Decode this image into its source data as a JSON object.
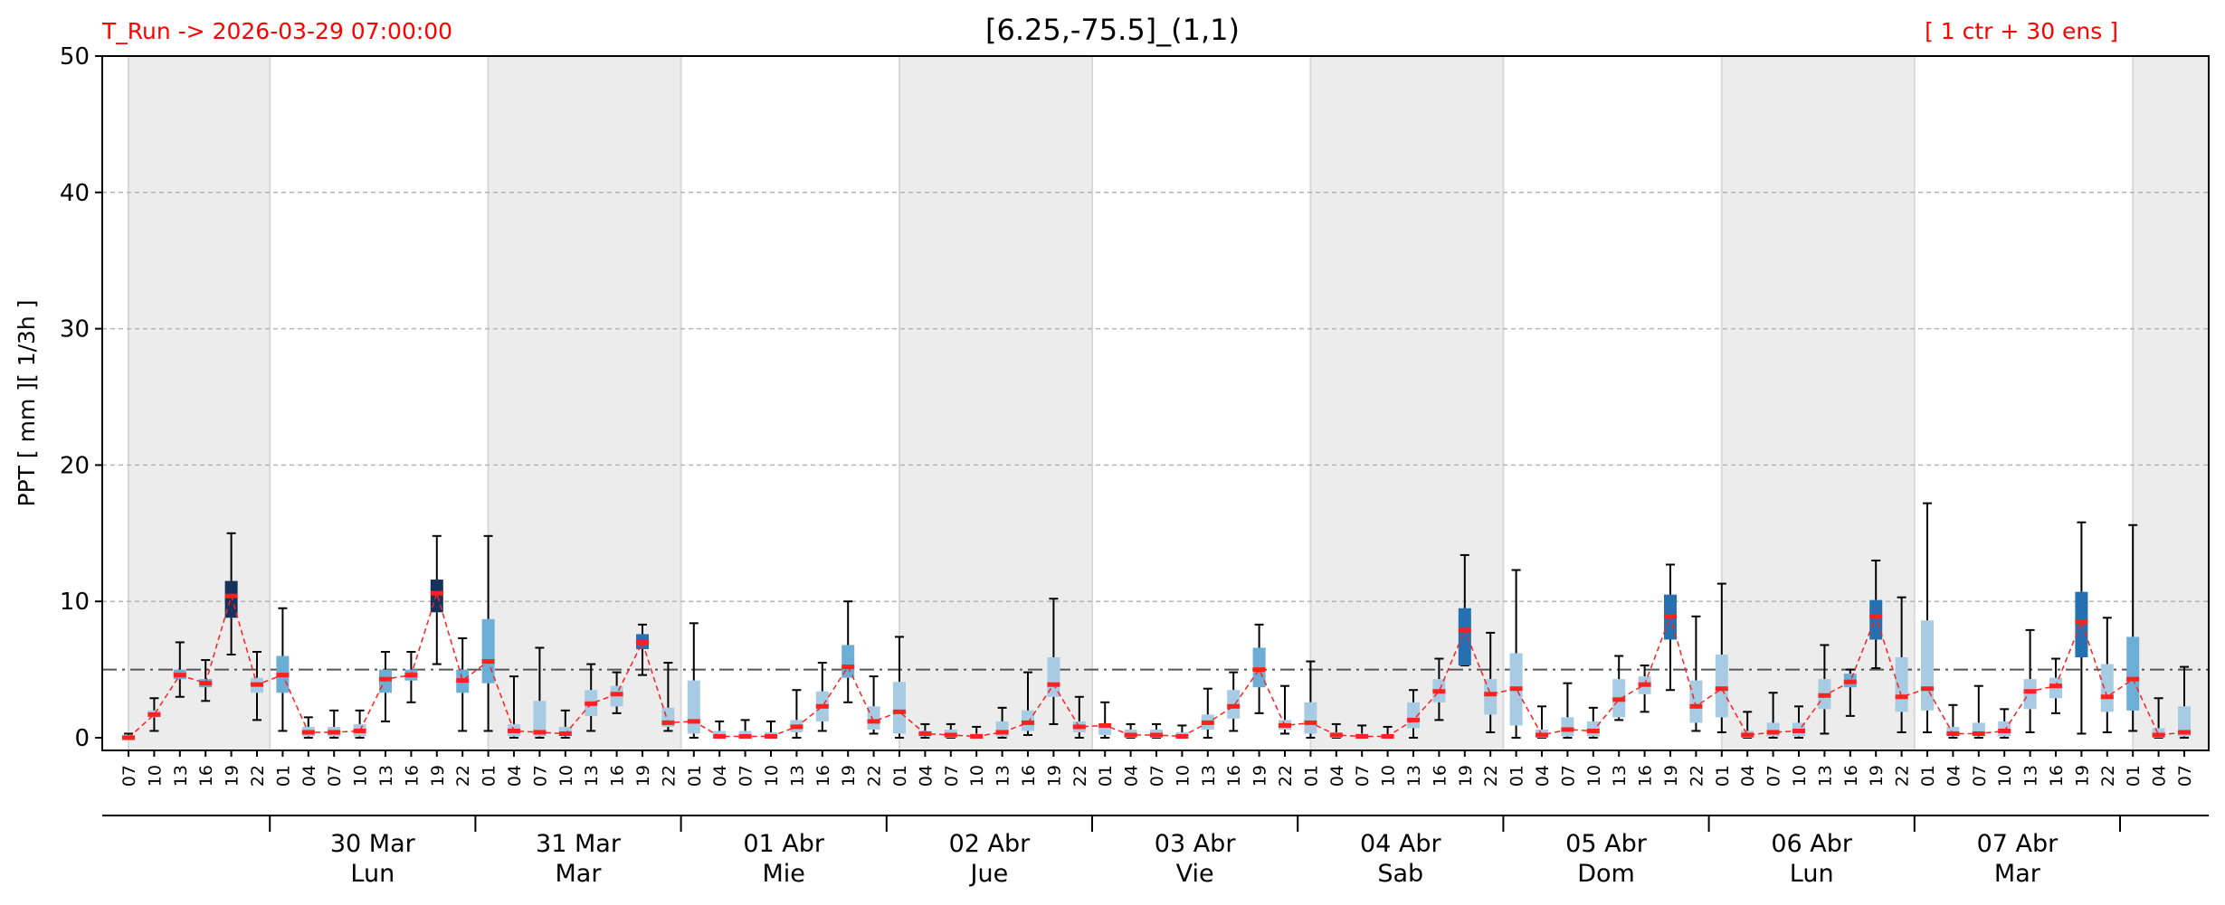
{
  "header": {
    "run_label": "T_Run -> 2026-03-29  07:00:00",
    "title": "[6.25,-75.5]_(1,1)",
    "ensemble_label": "[ 1 ctr + 30 ens ]"
  },
  "chart_data": {
    "type": "box",
    "title": "[6.25,-75.5]_(1,1)",
    "ylabel": "PPT  [ mm ][ 1/3h ]",
    "ylim": [
      0,
      50
    ],
    "yticks": [
      0,
      10,
      20,
      30,
      40,
      50
    ],
    "threshold": 5,
    "grid": "horizontal dashed",
    "colors": {
      "median_line": "#ff2020",
      "outlier": "#7b7bff",
      "day_band": "#ececec",
      "threshold": "#555555",
      "box_dark": "#16325c",
      "box_mid": "#2470b0",
      "box_light": "#6baed6",
      "box_pale": "#a6cbe3"
    },
    "hours": [
      "07",
      "10",
      "13",
      "16",
      "19",
      "22",
      "01",
      "04",
      "07",
      "10",
      "13",
      "16",
      "19",
      "22",
      "01",
      "04",
      "07",
      "10",
      "13",
      "16",
      "19",
      "22",
      "01",
      "04",
      "07",
      "10",
      "13",
      "16",
      "19",
      "22",
      "01",
      "04",
      "07",
      "10",
      "13",
      "16",
      "19",
      "22",
      "01",
      "04",
      "07",
      "10",
      "13",
      "16",
      "19",
      "22",
      "01",
      "04",
      "07",
      "10",
      "13",
      "16",
      "19",
      "22",
      "01",
      "04",
      "07",
      "10",
      "13",
      "16",
      "19",
      "22",
      "01",
      "04",
      "07",
      "10",
      "13",
      "16",
      "19",
      "22",
      "01",
      "04",
      "07",
      "10",
      "13",
      "16",
      "19",
      "22",
      "01",
      "04",
      "07"
    ],
    "days": [
      {
        "date": "30 Mar",
        "weekday": "Lun"
      },
      {
        "date": "31 Mar",
        "weekday": "Mar"
      },
      {
        "date": "01 Abr",
        "weekday": "Mie"
      },
      {
        "date": "02 Abr",
        "weekday": "Jue"
      },
      {
        "date": "03 Abr",
        "weekday": "Vie"
      },
      {
        "date": "04 Abr",
        "weekday": "Sab"
      },
      {
        "date": "05 Abr",
        "weekday": "Dom"
      },
      {
        "date": "06 Abr",
        "weekday": "Lun"
      },
      {
        "date": "07 Abr",
        "weekday": "Mar"
      }
    ],
    "medians": [
      0,
      1.7,
      4.6,
      4.0,
      10.4,
      3.9,
      4.6,
      0.4,
      0.4,
      0.5,
      4.3,
      4.6,
      10.6,
      4.2,
      5.6,
      0.5,
      0.4,
      0.3,
      2.5,
      3.2,
      7.0,
      1.1,
      1.2,
      0.1,
      0.1,
      0.1,
      0.8,
      2.3,
      5.2,
      1.2,
      1.9,
      0.3,
      0.2,
      0.1,
      0.4,
      1.1,
      3.9,
      0.8,
      0.9,
      0.2,
      0.2,
      0.1,
      1.1,
      2.3,
      5.0,
      0.9,
      1.1,
      0.2,
      0.1,
      0.1,
      1.3,
      3.4,
      7.9,
      3.2,
      3.6,
      0.2,
      0.6,
      0.5,
      2.8,
      3.9,
      8.9,
      2.3,
      3.6,
      0.2,
      0.4,
      0.5,
      3.1,
      4.1,
      8.9,
      3.0,
      3.6,
      0.3,
      0.3,
      0.5,
      3.4,
      3.8,
      8.5,
      3.0,
      4.3,
      0.2,
      0.4
    ],
    "q1": [
      0,
      1.5,
      4.3,
      3.7,
      8.8,
      3.3,
      3.3,
      0.1,
      0.1,
      0.1,
      3.3,
      4.2,
      9.2,
      3.3,
      4.0,
      0.1,
      0.1,
      0.1,
      1.6,
      2.3,
      6.5,
      0.8,
      0.3,
      0,
      0,
      0,
      0.4,
      1.2,
      4.4,
      0.6,
      0.3,
      0.1,
      0,
      0,
      0.1,
      0.5,
      3.0,
      0.4,
      0.2,
      0,
      0,
      0,
      0.6,
      1.4,
      3.7,
      0.6,
      0.3,
      0,
      0,
      0,
      0.7,
      2.6,
      5.3,
      1.7,
      0.9,
      0,
      0.1,
      0.1,
      1.5,
      3.2,
      7.2,
      1.1,
      1.5,
      0,
      0.1,
      0.1,
      2.1,
      3.7,
      7.2,
      1.9,
      2.0,
      0.1,
      0.1,
      0.1,
      2.1,
      2.9,
      5.9,
      1.9,
      2.0,
      0,
      0.1
    ],
    "q3": [
      0.2,
      2.0,
      5.0,
      4.3,
      11.5,
      4.4,
      6.0,
      0.8,
      0.8,
      1.0,
      5.0,
      5.0,
      11.6,
      5.0,
      8.7,
      1.0,
      2.7,
      0.8,
      3.5,
      3.8,
      7.6,
      2.2,
      4.2,
      0.5,
      0.5,
      0.4,
      1.3,
      3.4,
      6.8,
      2.3,
      4.1,
      0.5,
      0.6,
      0.3,
      1.2,
      2.0,
      5.9,
      1.2,
      1.0,
      0.6,
      0.6,
      0.4,
      1.7,
      3.5,
      6.6,
      1.3,
      2.6,
      0.4,
      0.3,
      0.2,
      2.6,
      4.3,
      9.5,
      4.3,
      6.2,
      0.6,
      1.5,
      1.2,
      4.3,
      4.5,
      10.5,
      4.2,
      6.1,
      0.5,
      1.1,
      1.1,
      4.3,
      4.7,
      10.1,
      5.9,
      8.6,
      0.8,
      1.1,
      1.2,
      4.3,
      4.4,
      10.7,
      5.4,
      7.4,
      0.7,
      2.3
    ],
    "whisker_low": [
      0,
      0.5,
      3.0,
      2.7,
      6.1,
      1.3,
      0.5,
      0,
      0,
      0,
      1.2,
      2.6,
      5.4,
      0.5,
      0.5,
      0,
      0,
      0,
      0.5,
      1.8,
      4.6,
      0.5,
      0,
      0,
      0,
      0,
      0,
      0.5,
      2.6,
      0.3,
      0,
      0,
      0,
      0,
      0,
      0.2,
      1.0,
      0,
      0,
      0,
      0,
      0,
      0,
      0.5,
      1.8,
      0.3,
      0,
      0,
      0,
      0,
      0,
      1.3,
      5.3,
      0.4,
      0,
      0,
      0,
      0,
      1.3,
      1.9,
      3.5,
      0.5,
      0.4,
      0,
      0,
      0,
      0.3,
      1.6,
      5.1,
      0.4,
      0.4,
      0,
      0,
      0,
      0.4,
      1.8,
      0.3,
      0.4,
      0.5,
      0,
      0
    ],
    "whisker_high": [
      0.3,
      2.9,
      7.0,
      5.7,
      15.0,
      6.3,
      9.5,
      1.5,
      2.0,
      2.0,
      6.3,
      6.3,
      14.8,
      7.3,
      14.8,
      4.5,
      6.6,
      2.0,
      5.4,
      4.8,
      8.3,
      5.5,
      8.4,
      1.2,
      1.3,
      1.2,
      3.5,
      5.5,
      10.0,
      4.5,
      7.4,
      1.0,
      1.0,
      0.8,
      2.2,
      4.8,
      10.2,
      3.0,
      2.6,
      1.0,
      1.0,
      0.9,
      3.6,
      4.8,
      8.3,
      3.8,
      5.6,
      1.0,
      0.9,
      0.8,
      3.5,
      5.8,
      13.4,
      7.7,
      12.3,
      2.3,
      4.0,
      2.2,
      6.0,
      5.3,
      12.7,
      8.9,
      11.3,
      1.9,
      3.3,
      2.3,
      6.8,
      5.0,
      13.0,
      10.3,
      17.2,
      2.4,
      3.8,
      2.1,
      7.9,
      5.8,
      15.8,
      8.8,
      15.6,
      2.9,
      5.2
    ]
  },
  "axis": {
    "yticks_text": [
      "0",
      "10",
      "20",
      "30",
      "40",
      "50"
    ]
  }
}
